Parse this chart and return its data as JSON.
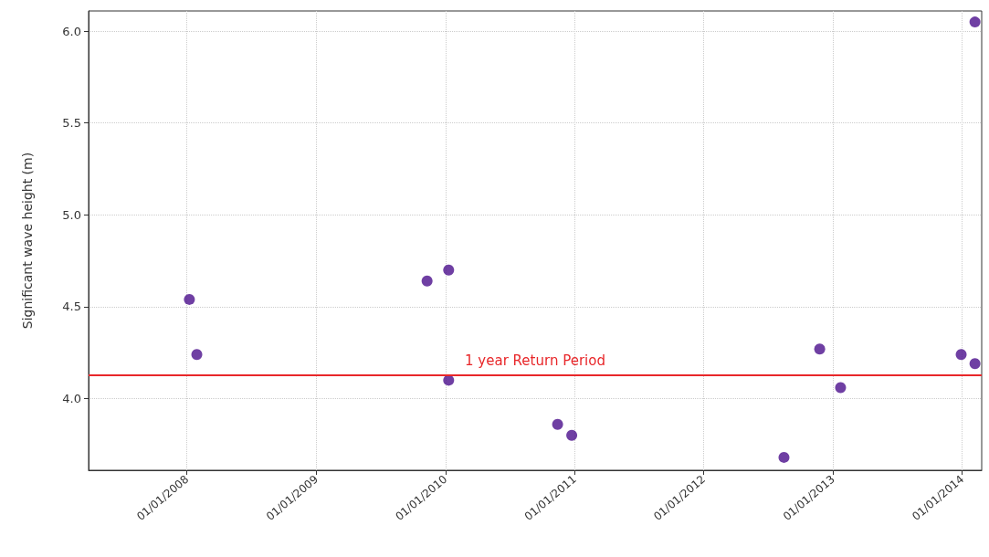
{
  "chart_data": {
    "type": "scatter",
    "ylabel": "Significant wave height (m)",
    "x": [
      "2008-01-08",
      "2008-01-29",
      "2009-11-10",
      "2010-01-10",
      "2010-01-10",
      "2010-11-14",
      "2010-12-24",
      "2012-08-15",
      "2012-11-24",
      "2013-01-22",
      "2013-12-29",
      "2014-02-06",
      "2014-02-06"
    ],
    "series": [
      {
        "color": "#4b0f8c",
        "values": [
          4.54,
          4.24,
          4.64,
          4.7,
          4.1,
          3.86,
          3.8,
          3.68,
          4.27,
          4.06,
          4.24,
          4.19,
          6.05
        ]
      }
    ],
    "xlim": [
      "2007-03-29",
      "2014-02-25"
    ],
    "xticks": [
      {
        "value": "2008-01-01",
        "label": "01/01/2008"
      },
      {
        "value": "2009-01-01",
        "label": "01/01/2009"
      },
      {
        "value": "2010-01-01",
        "label": "01/01/2010"
      },
      {
        "value": "2011-01-01",
        "label": "01/01/2011"
      },
      {
        "value": "2012-01-01",
        "label": "01/01/2012"
      },
      {
        "value": "2013-01-01",
        "label": "01/01/2013"
      },
      {
        "value": "2014-01-01",
        "label": "01/01/2014"
      }
    ],
    "ylim": [
      3.61,
      6.11
    ],
    "yticks": [
      {
        "value": 4,
        "label": "4.0"
      },
      {
        "value": 4.5,
        "label": "4.5"
      },
      {
        "value": 5,
        "label": "5.0"
      },
      {
        "value": 5.5,
        "label": "5.5"
      },
      {
        "value": 6,
        "label": "6.0"
      }
    ],
    "ref_lines": [
      {
        "axis": "y",
        "value": 4.13,
        "label": "1 year Return Period",
        "color": "#e8272a"
      }
    ],
    "grid": true,
    "marker": "circle"
  }
}
